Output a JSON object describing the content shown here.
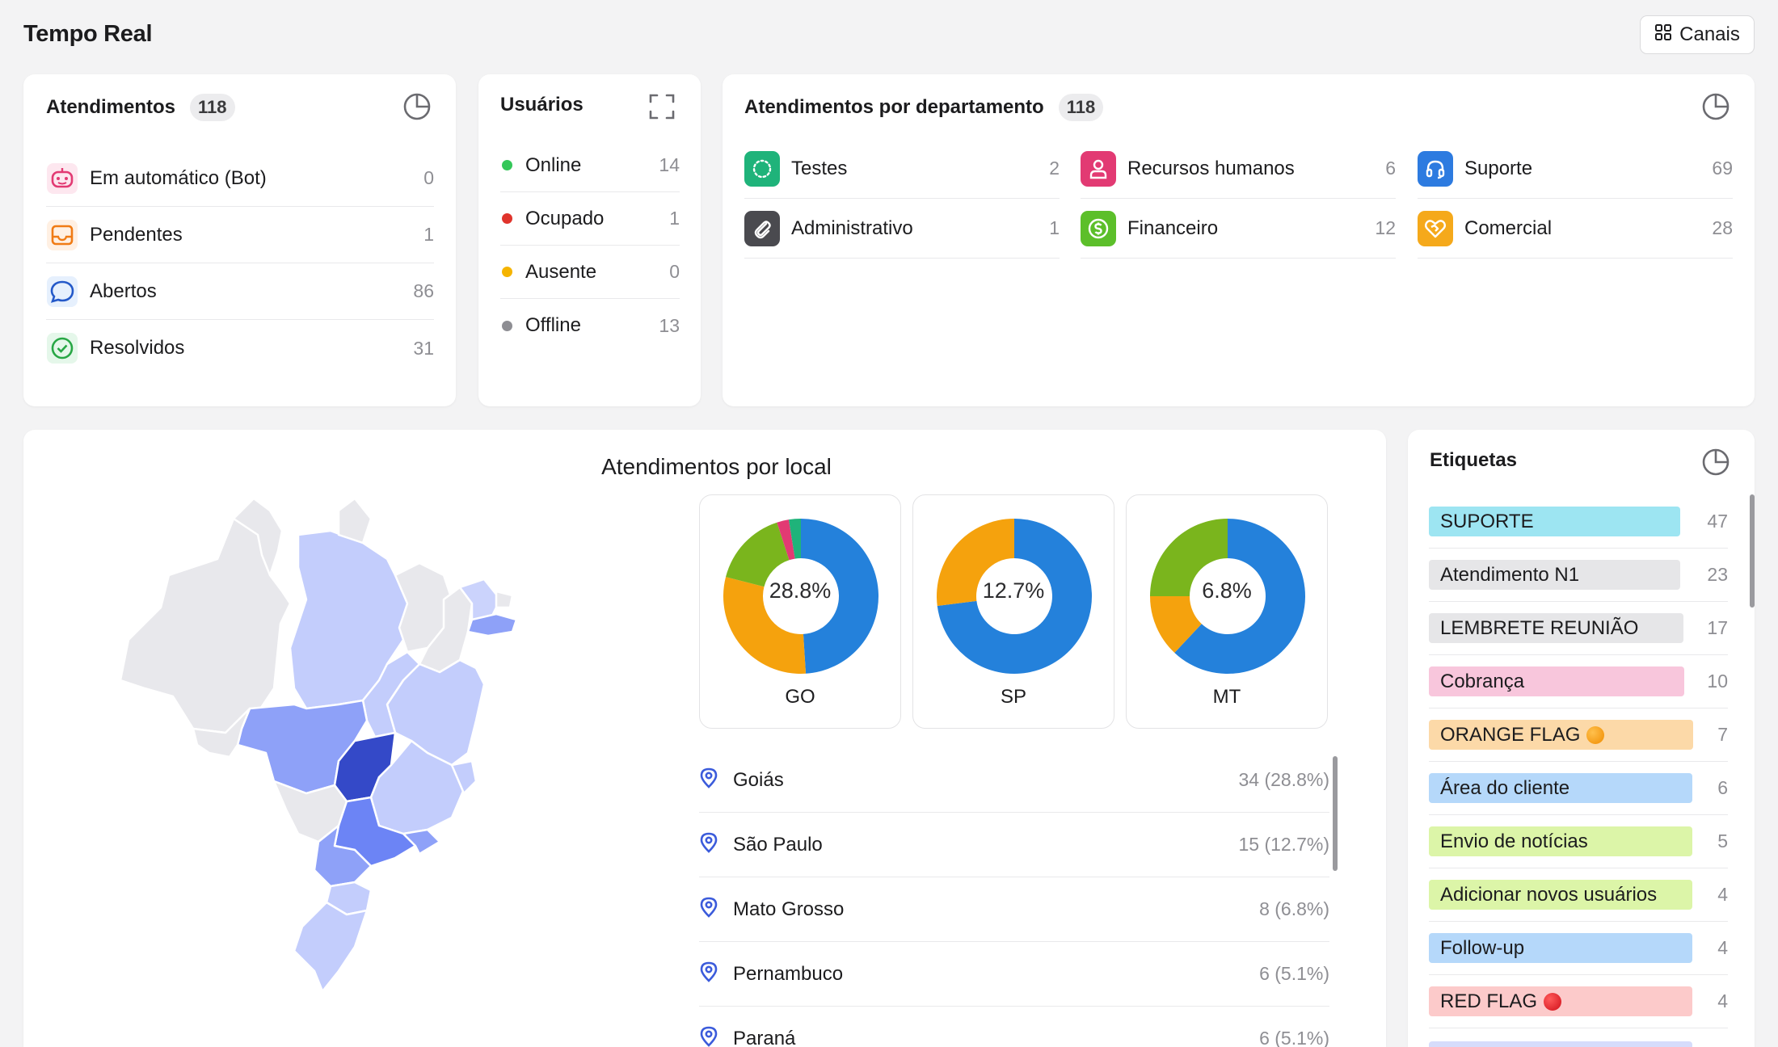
{
  "header": {
    "title": "Tempo Real",
    "canais_label": "Canais"
  },
  "atendimentos": {
    "title": "Atendimentos",
    "count": "118",
    "items": [
      {
        "label": "Em automático (Bot)",
        "value": "0",
        "icon": "bot-icon"
      },
      {
        "label": "Pendentes",
        "value": "1",
        "icon": "inbox-icon"
      },
      {
        "label": "Abertos",
        "value": "86",
        "icon": "chat-bubble-icon"
      },
      {
        "label": "Resolvidos",
        "value": "31",
        "icon": "check-circle-icon"
      }
    ]
  },
  "usuarios": {
    "title": "Usuários",
    "items": [
      {
        "label": "Online",
        "value": "14",
        "color": "#34c759"
      },
      {
        "label": "Ocupado",
        "value": "1",
        "color": "#e0342c"
      },
      {
        "label": "Ausente",
        "value": "0",
        "color": "#f5b400"
      },
      {
        "label": "Offline",
        "value": "13",
        "color": "#8e8e93"
      }
    ]
  },
  "departamentos": {
    "title": "Atendimentos por departamento",
    "count": "118",
    "items": [
      {
        "label": "Testes",
        "value": "2",
        "color": "#1fb37a",
        "icon": "spinner-icon"
      },
      {
        "label": "Recursos humanos",
        "value": "6",
        "color": "#e23a73",
        "icon": "person-icon"
      },
      {
        "label": "Suporte",
        "value": "69",
        "color": "#2d7be0",
        "icon": "headset-icon"
      },
      {
        "label": "Administrativo",
        "value": "1",
        "color": "#4a4a4f",
        "icon": "paperclip-icon"
      },
      {
        "label": "Financeiro",
        "value": "12",
        "color": "#5cbf2a",
        "icon": "dollar-icon"
      },
      {
        "label": "Comercial",
        "value": "28",
        "color": "#f5a91b",
        "icon": "handshake-icon"
      }
    ]
  },
  "local": {
    "title": "Atendimentos por local",
    "donuts": [
      {
        "label": "GO",
        "pct": "28.8%",
        "segments": [
          {
            "value": 0.49,
            "color": "#2481db"
          },
          {
            "value": 0.3,
            "color": "#f5a20d"
          },
          {
            "value": 0.16,
            "color": "#7ab51d"
          },
          {
            "value": 0.025,
            "color": "#e23a73"
          },
          {
            "value": 0.025,
            "color": "#1fb37a"
          }
        ]
      },
      {
        "label": "SP",
        "pct": "12.7%",
        "segments": [
          {
            "value": 0.73,
            "color": "#2481db"
          },
          {
            "value": 0.27,
            "color": "#f5a20d"
          }
        ]
      },
      {
        "label": "MT",
        "pct": "6.8%",
        "segments": [
          {
            "value": 0.62,
            "color": "#2481db"
          },
          {
            "value": 0.13,
            "color": "#f5a20d"
          },
          {
            "value": 0.25,
            "color": "#7ab51d"
          }
        ]
      }
    ],
    "rows": [
      {
        "label": "Goiás",
        "value": "34 (28.8%)"
      },
      {
        "label": "São Paulo",
        "value": "15 (12.7%)"
      },
      {
        "label": "Mato Grosso",
        "value": "8 (6.8%)"
      },
      {
        "label": "Pernambuco",
        "value": "6 (5.1%)"
      },
      {
        "label": "Paraná",
        "value": "6 (5.1%)"
      }
    ]
  },
  "etiquetas": {
    "title": "Etiquetas",
    "items": [
      {
        "label": "SUPORTE",
        "value": "47",
        "color": "#9de5f2"
      },
      {
        "label": "Atendimento N1",
        "value": "23",
        "color": "#e6e6e8"
      },
      {
        "label": "LEMBRETE REUNIÃO",
        "value": "17",
        "color": "#e6e6e8"
      },
      {
        "label": "Cobrança",
        "value": "10",
        "color": "#f8c6dc"
      },
      {
        "label": "ORANGE FLAG",
        "value": "7",
        "color": "#fcd9a8",
        "emoji": "orange"
      },
      {
        "label": "Área do cliente",
        "value": "6",
        "color": "#b5d8fa"
      },
      {
        "label": "Envio de notícias",
        "value": "5",
        "color": "#dcf5a8"
      },
      {
        "label": "Adicionar novos usuários",
        "value": "4",
        "color": "#dcf5a8"
      },
      {
        "label": "Follow-up",
        "value": "4",
        "color": "#b5d8fa"
      },
      {
        "label": "RED FLAG",
        "value": "4",
        "color": "#fccaca",
        "emoji": "red"
      }
    ]
  }
}
